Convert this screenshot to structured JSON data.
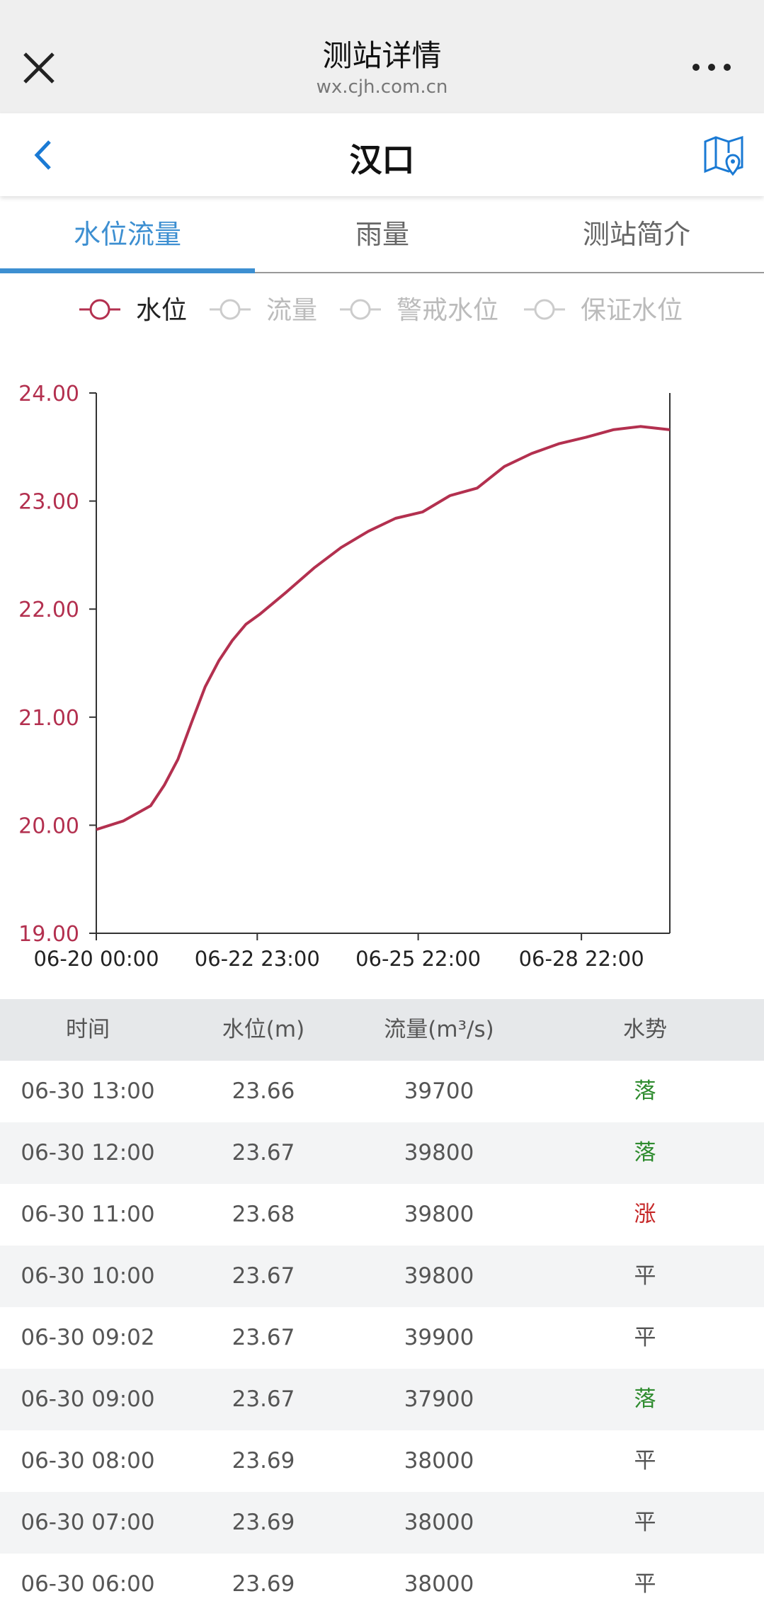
{
  "header": {
    "title": "测站详情",
    "url": "wx.cjh.com.cn"
  },
  "nav": {
    "title": "汉口"
  },
  "tabs": [
    "水位流量",
    "雨量",
    "测站简介"
  ],
  "chart_data": {
    "type": "line",
    "x": [
      "06-20 00:00",
      "06-20 12:00",
      "06-21 00:00",
      "06-21 06:00",
      "06-21 12:00",
      "06-21 18:00",
      "06-22 00:00",
      "06-22 06:00",
      "06-22 12:00",
      "06-22 18:00",
      "06-23 00:00",
      "06-23 12:00",
      "06-24 00:00",
      "06-24 12:00",
      "06-25 00:00",
      "06-25 12:00",
      "06-26 00:00",
      "06-26 12:00",
      "06-27 00:00",
      "06-27 12:00",
      "06-28 00:00",
      "06-28 12:00",
      "06-29 00:00",
      "06-29 12:00",
      "06-30 00:00",
      "06-30 13:00"
    ],
    "series": [
      {
        "name": "水位",
        "color": "#b3304f",
        "values": [
          19.96,
          20.04,
          20.18,
          20.37,
          20.61,
          20.95,
          21.28,
          21.52,
          21.71,
          21.86,
          21.95,
          22.16,
          22.38,
          22.57,
          22.72,
          22.84,
          22.9,
          23.05,
          23.12,
          23.32,
          23.44,
          23.53,
          23.59,
          23.66,
          23.69,
          23.66
        ]
      }
    ],
    "hidden_series": [
      "流量",
      "警戒水位",
      "保证水位"
    ],
    "xlim": [
      "06-20 00:00",
      "06-30 13:00"
    ],
    "xticks": [
      "06-20 00:00",
      "06-22 23:00",
      "06-25 22:00",
      "06-28 22:00"
    ],
    "ylim": [
      19,
      24
    ],
    "yticks": [
      {
        "value": 19,
        "label": "19.00"
      },
      {
        "value": 20,
        "label": "20.00"
      },
      {
        "value": 21,
        "label": "21.00"
      },
      {
        "value": 22,
        "label": "22.00"
      },
      {
        "value": 23,
        "label": "23.00"
      },
      {
        "value": 24,
        "label": "24.00"
      }
    ],
    "axis_color": "#b3304f"
  },
  "table": {
    "headers": [
      "时间",
      "水位(m)",
      "流量(m³/s)",
      "水势"
    ],
    "rows": [
      [
        "06-30 13:00",
        "23.66",
        "39700",
        "落"
      ],
      [
        "06-30 12:00",
        "23.67",
        "39800",
        "落"
      ],
      [
        "06-30 11:00",
        "23.68",
        "39800",
        "涨"
      ],
      [
        "06-30 10:00",
        "23.67",
        "39800",
        "平"
      ],
      [
        "06-30 09:02",
        "23.67",
        "39900",
        "平"
      ],
      [
        "06-30 09:00",
        "23.67",
        "37900",
        "落"
      ],
      [
        "06-30 08:00",
        "23.69",
        "38000",
        "平"
      ],
      [
        "06-30 07:00",
        "23.69",
        "38000",
        "平"
      ],
      [
        "06-30 06:00",
        "23.69",
        "38000",
        "平"
      ]
    ],
    "trend_colors": [
      "#2e8b2e",
      "#2e8b2e",
      "#c62828",
      "#555555",
      "#555555",
      "#2e8b2e",
      "#555555",
      "#555555",
      "#555555"
    ]
  }
}
